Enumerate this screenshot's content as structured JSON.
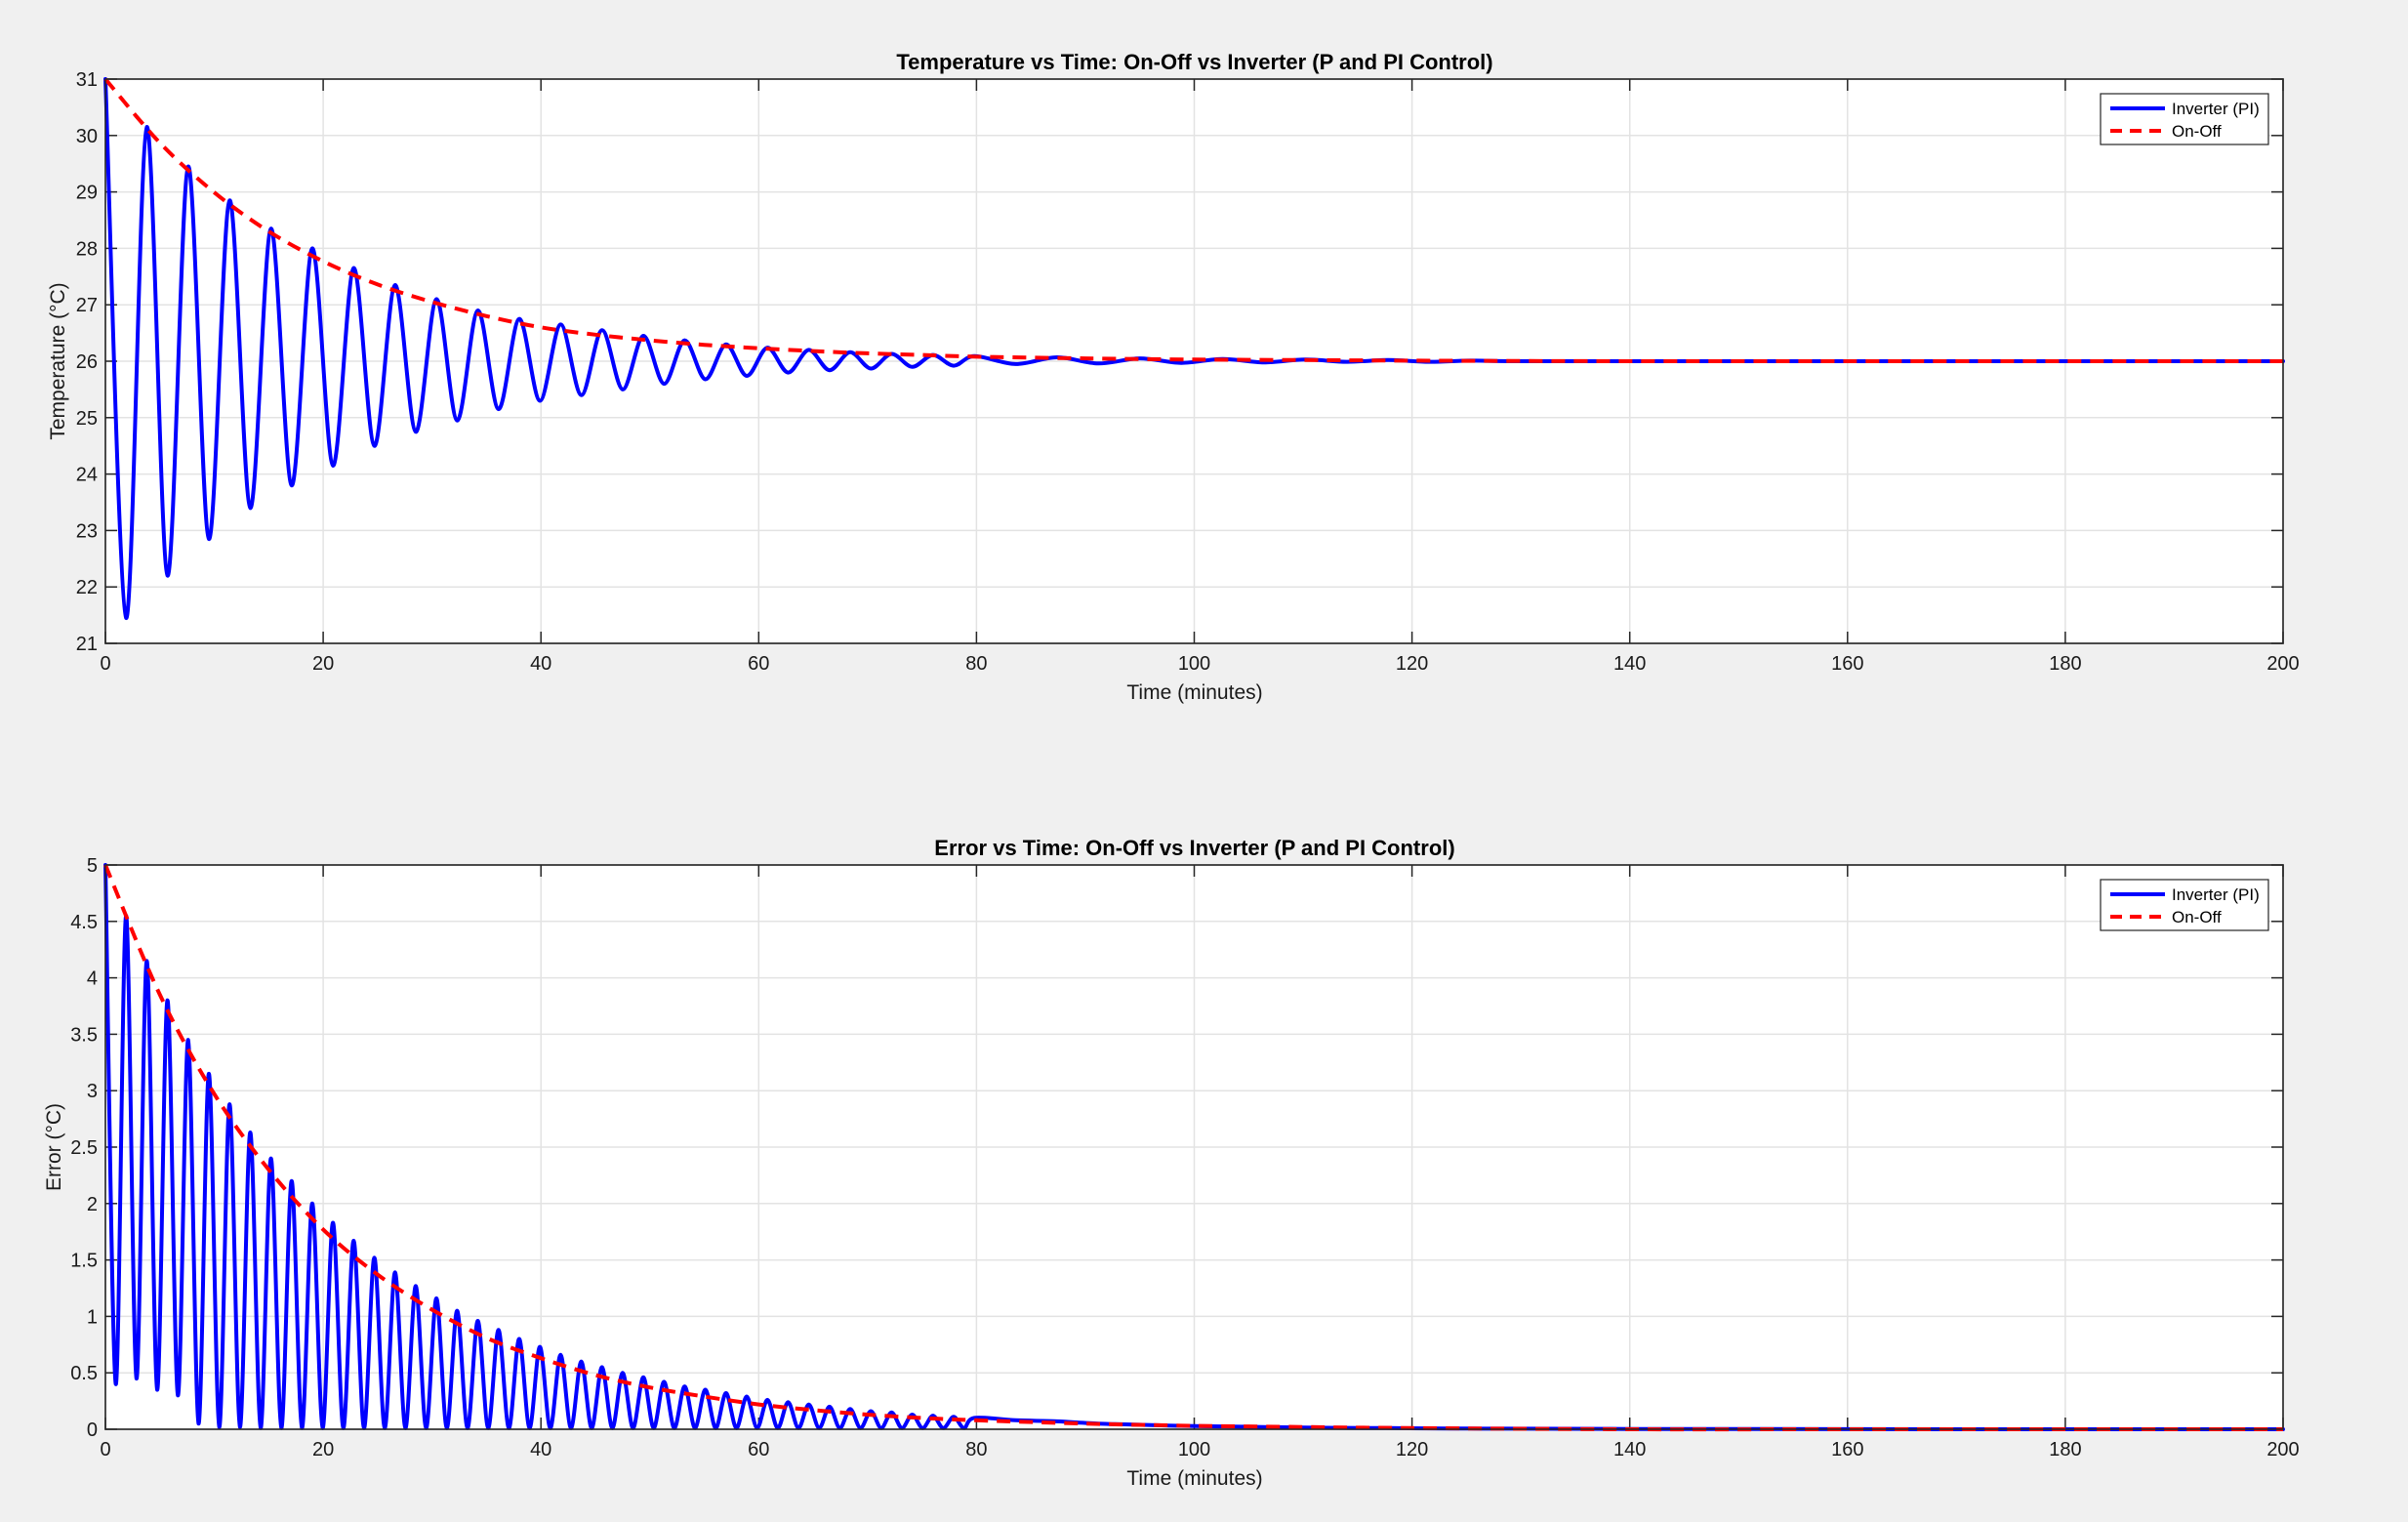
{
  "chart_data": [
    {
      "type": "line",
      "title": "Temperature vs Time: On-Off vs Inverter (P and PI Control)",
      "xlabel": "Time (minutes)",
      "ylabel": "Temperature (°C)",
      "xlim": [
        0,
        200
      ],
      "ylim": [
        21,
        31
      ],
      "xticks": [
        "0",
        "20",
        "40",
        "60",
        "80",
        "100",
        "120",
        "140",
        "160",
        "180",
        "200"
      ],
      "yticks": [
        "21",
        "22",
        "23",
        "24",
        "25",
        "26",
        "27",
        "28",
        "29",
        "30",
        "31"
      ],
      "grid": true,
      "legend_position": "top-right",
      "series": [
        {
          "name": "Inverter (PI)",
          "color": "#0000ff",
          "style": "solid",
          "x": [
            0,
            1.9,
            3.8,
            5.7,
            7.6,
            9.5,
            11.4,
            13.3,
            15.2,
            17.1,
            19.0,
            20.9,
            22.8,
            24.7,
            26.6,
            28.5,
            30.4,
            32.3,
            34.2,
            36.1,
            38.0,
            39.9,
            41.8,
            43.7,
            45.6,
            47.5,
            49.4,
            51.3,
            53.2,
            55.1,
            57.0,
            58.9,
            60.8,
            62.7,
            64.6,
            66.5,
            68.4,
            70.3,
            72.2,
            74.1,
            76.0,
            77.9,
            79.8,
            83.6,
            87.4,
            91.2,
            95.0,
            98.8,
            102.6,
            106.4,
            110.2,
            114.0,
            117.8,
            121.6,
            125.4,
            129.2,
            140,
            160,
            180,
            200
          ],
          "y": [
            31.0,
            21.45,
            30.15,
            22.2,
            29.45,
            22.85,
            28.85,
            23.4,
            28.35,
            23.8,
            28.0,
            24.15,
            27.65,
            24.5,
            27.35,
            24.75,
            27.1,
            24.95,
            26.9,
            25.15,
            26.75,
            25.3,
            26.65,
            25.4,
            26.55,
            25.5,
            26.45,
            25.6,
            26.37,
            25.68,
            26.3,
            25.74,
            26.24,
            25.8,
            26.2,
            25.84,
            26.16,
            25.87,
            26.13,
            25.9,
            26.11,
            25.92,
            26.09,
            25.95,
            26.07,
            25.96,
            26.05,
            25.97,
            26.04,
            25.98,
            26.03,
            25.99,
            26.02,
            25.99,
            26.01,
            26.0,
            26.0,
            26.0,
            26.0,
            26.0
          ]
        },
        {
          "name": "On-Off",
          "color": "#ff0000",
          "style": "dashed",
          "x": [
            0,
            5,
            10,
            15,
            20,
            25,
            30,
            35,
            40,
            45,
            50,
            55,
            60,
            65,
            70,
            75,
            80,
            90,
            100,
            110,
            120,
            140,
            160,
            180,
            200
          ],
          "y": [
            31.0,
            29.87,
            28.99,
            28.3,
            27.77,
            27.36,
            27.05,
            26.8,
            26.6,
            26.47,
            26.37,
            26.29,
            26.23,
            26.18,
            26.14,
            26.11,
            26.08,
            26.05,
            26.03,
            26.02,
            26.01,
            26.0,
            26.0,
            26.0,
            26.0
          ]
        }
      ]
    },
    {
      "type": "line",
      "title": "Error vs Time: On-Off vs Inverter (P and PI Control)",
      "xlabel": "Time (minutes)",
      "ylabel": "Error (°C)",
      "xlim": [
        0,
        200
      ],
      "ylim": [
        0,
        5
      ],
      "xticks": [
        "0",
        "20",
        "40",
        "60",
        "80",
        "100",
        "120",
        "140",
        "160",
        "180",
        "200"
      ],
      "yticks": [
        "0",
        "0.5",
        "1",
        "1.5",
        "2",
        "2.5",
        "3",
        "3.5",
        "4",
        "4.5",
        "5"
      ],
      "grid": true,
      "legend_position": "top-right",
      "series": [
        {
          "name": "Inverter (PI)",
          "color": "#0000ff",
          "style": "solid",
          "x": [
            0,
            0.95,
            1.9,
            2.85,
            3.8,
            4.75,
            5.7,
            6.65,
            7.6,
            8.55,
            9.5,
            10.45,
            11.4,
            12.35,
            13.3,
            14.25,
            15.2,
            16.15,
            17.1,
            18.05,
            19.0,
            19.95,
            20.9,
            21.85,
            22.8,
            23.75,
            24.7,
            25.65,
            26.6,
            27.55,
            28.5,
            29.45,
            30.4,
            31.35,
            32.3,
            33.25,
            34.2,
            35.15,
            36.1,
            37.05,
            38.0,
            38.95,
            39.9,
            40.85,
            41.8,
            42.75,
            43.7,
            44.65,
            45.6,
            46.55,
            47.5,
            48.45,
            49.4,
            50.35,
            51.3,
            52.25,
            53.2,
            54.15,
            55.1,
            56.05,
            57.0,
            57.95,
            58.9,
            59.85,
            60.8,
            61.75,
            62.7,
            63.65,
            64.6,
            65.55,
            66.5,
            67.45,
            68.4,
            69.35,
            70.3,
            71.25,
            72.2,
            73.15,
            74.1,
            75.05,
            76.0,
            76.95,
            77.9,
            78.85,
            79.8,
            83.6,
            87.4,
            91.2,
            95.0,
            98.8,
            102.6,
            106.4,
            110.2,
            114.0,
            117.8,
            121.6,
            125.4,
            129.2,
            140,
            160,
            180,
            200
          ],
          "y": [
            5.0,
            0.4,
            4.55,
            0.45,
            4.15,
            0.35,
            3.8,
            0.3,
            3.45,
            0.05,
            3.15,
            0.02,
            2.88,
            0.02,
            2.63,
            0.01,
            2.4,
            0.01,
            2.2,
            0.01,
            2.0,
            0.01,
            1.83,
            0.01,
            1.67,
            0.01,
            1.52,
            0.01,
            1.39,
            0.01,
            1.27,
            0.01,
            1.16,
            0.01,
            1.05,
            0.01,
            0.96,
            0.01,
            0.88,
            0.01,
            0.8,
            0.01,
            0.73,
            0.01,
            0.66,
            0.01,
            0.6,
            0.01,
            0.55,
            0.01,
            0.5,
            0.01,
            0.46,
            0.01,
            0.42,
            0.01,
            0.38,
            0.01,
            0.35,
            0.01,
            0.32,
            0.01,
            0.29,
            0.01,
            0.26,
            0.01,
            0.24,
            0.01,
            0.22,
            0.01,
            0.2,
            0.01,
            0.18,
            0.01,
            0.16,
            0.01,
            0.15,
            0.01,
            0.13,
            0.01,
            0.12,
            0.01,
            0.11,
            0.01,
            0.1,
            0.08,
            0.07,
            0.05,
            0.04,
            0.03,
            0.025,
            0.02,
            0.015,
            0.012,
            0.01,
            0.008,
            0.006,
            0.005,
            0.003,
            0.001,
            0.0,
            0.0
          ]
        },
        {
          "name": "On-Off",
          "color": "#ff0000",
          "style": "dashed",
          "x": [
            0,
            5,
            10,
            15,
            20,
            25,
            30,
            35,
            40,
            45,
            50,
            55,
            60,
            65,
            70,
            75,
            80,
            90,
            100,
            110,
            120,
            140,
            160,
            180,
            200
          ],
          "y": [
            5.0,
            3.85,
            2.97,
            2.3,
            1.77,
            1.37,
            1.06,
            0.81,
            0.63,
            0.48,
            0.37,
            0.29,
            0.22,
            0.17,
            0.13,
            0.1,
            0.08,
            0.05,
            0.03,
            0.02,
            0.01,
            0.0,
            0.0,
            0.0,
            0.0
          ]
        }
      ]
    }
  ]
}
